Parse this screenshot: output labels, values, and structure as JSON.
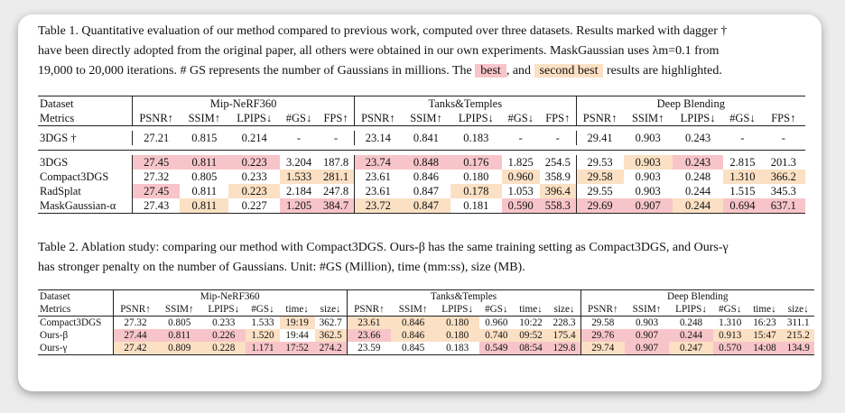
{
  "colors": {
    "best": "#f7c5c9",
    "second": "#fbe0c4"
  },
  "table1": {
    "caption": {
      "line1": "Table 1. Quantitative evaluation of our method compared to previous work, computed over three datasets. Results marked with dagger †",
      "line2": "have been directly adopted from the original paper, all others were obtained in our own experiments. MaskGaussian uses λm=0.1 from",
      "line3_pre": "19,000 to 20,000 iterations. # GS represents the number of Gaussians in millions. The",
      "best_label": "best",
      "mid": ", and",
      "second_label": "second best",
      "post": "results are highlighted."
    },
    "row_label_dataset": "Dataset",
    "row_label_metrics": "Metrics",
    "datasets": [
      "Mip-NeRF360",
      "Tanks&Temples",
      "Deep Blending"
    ],
    "metrics": [
      "PSNR↑",
      "SSIM↑",
      "LPIPS↓",
      "#GS↓",
      "FPS↑"
    ],
    "rows": [
      {
        "method": "3DGS †",
        "values": [
          "27.21",
          "0.815",
          "0.214",
          "-",
          "-",
          "23.14",
          "0.841",
          "0.183",
          "-",
          "-",
          "29.41",
          "0.903",
          "0.243",
          "-",
          "-"
        ],
        "hl": [
          "",
          "",
          "",
          "",
          "",
          "",
          "",
          "",
          "",
          "",
          "",
          "",
          "",
          "",
          ""
        ]
      },
      {
        "method": "3DGS",
        "values": [
          "27.45",
          "0.811",
          "0.223",
          "3.204",
          "187.8",
          "23.74",
          "0.848",
          "0.176",
          "1.825",
          "254.5",
          "29.53",
          "0.903",
          "0.243",
          "2.815",
          "201.3"
        ],
        "hl": [
          "b",
          "b",
          "b",
          "",
          "",
          "b",
          "b",
          "b",
          "",
          "",
          "",
          "s",
          "b",
          "",
          ""
        ]
      },
      {
        "method": "Compact3DGS",
        "values": [
          "27.32",
          "0.805",
          "0.233",
          "1.533",
          "281.1",
          "23.61",
          "0.846",
          "0.180",
          "0.960",
          "358.9",
          "29.58",
          "0.903",
          "0.248",
          "1.310",
          "366.2"
        ],
        "hl": [
          "",
          "",
          "",
          "s",
          "s",
          "",
          "",
          "",
          "s",
          "",
          "s",
          "",
          "",
          "s",
          "s"
        ]
      },
      {
        "method": "RadSplat",
        "values": [
          "27.45",
          "0.811",
          "0.223",
          "2.184",
          "247.8",
          "23.61",
          "0.847",
          "0.178",
          "1.053",
          "396.4",
          "29.55",
          "0.903",
          "0.244",
          "1.515",
          "345.3"
        ],
        "hl": [
          "b",
          "",
          "s",
          "",
          "",
          "",
          "",
          "s",
          "",
          "s",
          "",
          "",
          "",
          "",
          ""
        ]
      },
      {
        "method": "MaskGaussian-α",
        "values": [
          "27.43",
          "0.811",
          "0.227",
          "1.205",
          "384.7",
          "23.72",
          "0.847",
          "0.181",
          "0.590",
          "558.3",
          "29.69",
          "0.907",
          "0.244",
          "0.694",
          "637.1"
        ],
        "hl": [
          "",
          "s",
          "",
          "b",
          "b",
          "s",
          "s",
          "",
          "b",
          "b",
          "b",
          "b",
          "s",
          "b",
          "b"
        ]
      }
    ]
  },
  "table2": {
    "caption": {
      "line1": "Table 2. Ablation study: comparing our method with Compact3DGS. Ours-β has the same training setting as Compact3DGS, and Ours-γ",
      "line2": "has stronger penalty on the number of Gaussians. Unit: #GS (Million), time (mm:ss), size (MB)."
    },
    "row_label_dataset": "Dataset",
    "row_label_metrics": "Metrics",
    "datasets": [
      "Mip-NeRF360",
      "Tanks&Temples",
      "Deep Blending"
    ],
    "metrics": [
      "PSNR↑",
      "SSIM↑",
      "LPIPS↓",
      "#GS↓",
      "time↓",
      "size↓"
    ],
    "rows": [
      {
        "method": "Compact3DGS",
        "values": [
          "27.32",
          "0.805",
          "0.233",
          "1.533",
          "19:19",
          "362.7",
          "23.61",
          "0.846",
          "0.180",
          "0.960",
          "10:22",
          "228.3",
          "29.58",
          "0.903",
          "0.248",
          "1.310",
          "16:23",
          "311.1"
        ],
        "hl": [
          "",
          "",
          "",
          "",
          "s",
          "",
          "s",
          "s",
          "s",
          "",
          "",
          "",
          "",
          "",
          "",
          "",
          "",
          ""
        ]
      },
      {
        "method": "Ours-β",
        "values": [
          "27.44",
          "0.811",
          "0.226",
          "1.520",
          "19:44",
          "362.5",
          "23.66",
          "0.846",
          "0.180",
          "0.740",
          "09:52",
          "175.4",
          "29.76",
          "0.907",
          "0.244",
          "0.913",
          "15:47",
          "215.2"
        ],
        "hl": [
          "b",
          "b",
          "b",
          "s",
          "",
          "s",
          "b",
          "s",
          "s",
          "s",
          "s",
          "s",
          "b",
          "b",
          "b",
          "s",
          "s",
          "s"
        ]
      },
      {
        "method": "Ours-γ",
        "values": [
          "27.42",
          "0.809",
          "0.228",
          "1.171",
          "17:52",
          "274.2",
          "23.59",
          "0.845",
          "0.183",
          "0.549",
          "08:54",
          "129.8",
          "29.74",
          "0.907",
          "0.247",
          "0.570",
          "14:08",
          "134.9"
        ],
        "hl": [
          "s",
          "s",
          "s",
          "b",
          "b",
          "b",
          "",
          "",
          "",
          "b",
          "b",
          "b",
          "s",
          "b",
          "s",
          "b",
          "b",
          "b"
        ]
      }
    ]
  }
}
